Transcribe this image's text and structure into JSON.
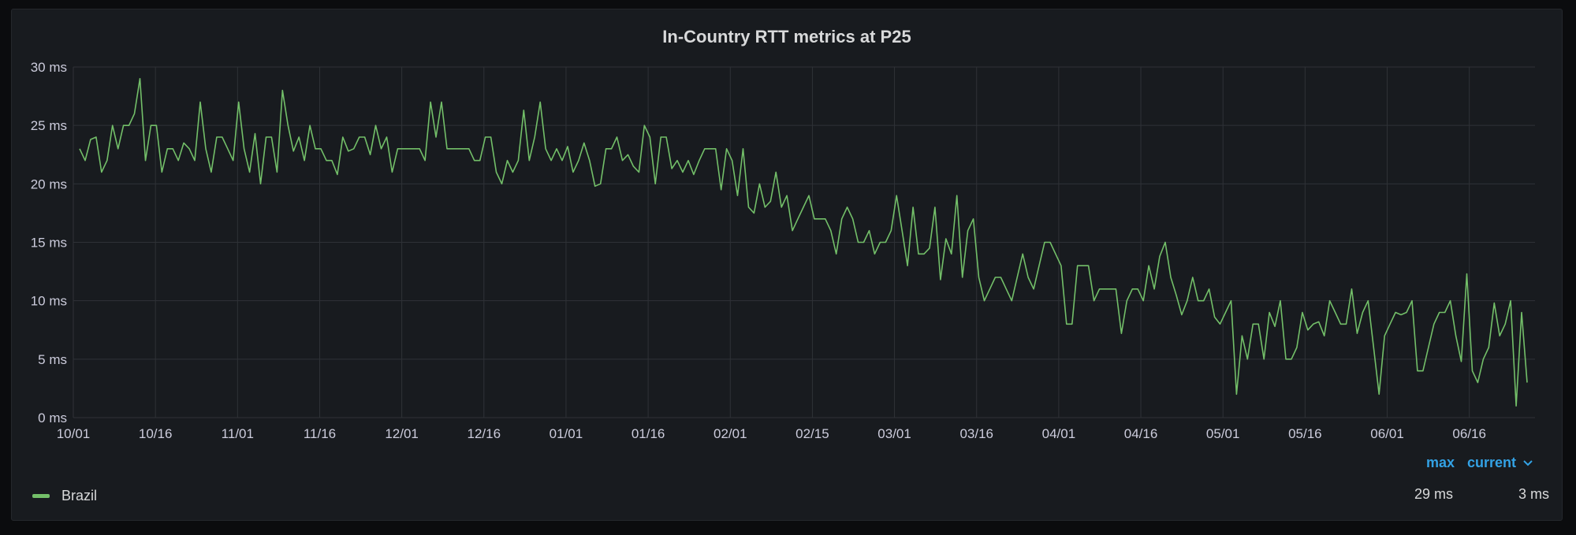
{
  "chart_data": {
    "type": "line",
    "title": "In-Country RTT metrics at P25",
    "x_tick_labels": [
      "10/01",
      "10/16",
      "11/01",
      "11/16",
      "12/01",
      "12/16",
      "01/01",
      "01/16",
      "02/01",
      "02/15",
      "03/01",
      "03/16",
      "04/01",
      "04/16",
      "05/01",
      "05/16",
      "06/01",
      "06/16"
    ],
    "y_tick_labels": [
      "0 ms",
      "5 ms",
      "10 ms",
      "15 ms",
      "20 ms",
      "25 ms",
      "30 ms"
    ],
    "ylim": [
      0,
      30
    ],
    "y_unit": "ms",
    "grid": true,
    "legend_position": "bottom",
    "series": [
      {
        "name": "Brazil",
        "color": "#73bf69",
        "values": [
          23,
          22,
          23.8,
          24,
          21,
          22,
          25,
          23,
          25,
          25,
          26,
          29,
          22,
          25,
          25,
          21,
          23,
          23,
          22,
          23.5,
          23,
          22,
          27,
          23,
          21,
          24,
          24,
          23,
          22,
          27,
          23,
          21,
          24.3,
          20,
          24,
          24,
          21,
          28,
          25,
          22.8,
          24,
          22,
          25,
          23,
          23,
          22,
          22,
          20.8,
          24,
          22.8,
          23,
          24,
          24,
          22.5,
          25,
          23,
          24,
          21,
          23,
          23,
          23,
          23,
          23,
          22,
          27,
          24,
          27,
          23,
          23,
          23,
          23,
          23,
          22,
          22,
          24,
          24,
          21,
          20,
          22,
          21,
          22,
          26.3,
          22,
          24,
          27,
          23,
          22,
          23,
          22,
          23.2,
          21,
          22,
          23.5,
          22,
          19.8,
          20,
          23,
          23,
          24,
          22,
          22.5,
          21.5,
          21,
          25,
          24,
          20,
          24,
          24,
          21.3,
          22,
          21,
          22,
          20.8,
          22,
          23,
          23,
          23,
          19.5,
          23,
          22,
          19,
          23,
          18,
          17.5,
          20,
          18,
          18.5,
          21,
          18,
          19,
          16,
          17,
          18,
          19,
          17,
          17,
          17,
          16,
          14,
          17,
          18,
          17,
          15,
          15,
          16,
          14,
          15,
          15,
          16,
          19,
          16,
          13,
          18,
          14,
          14,
          14.5,
          18,
          11.8,
          15.3,
          14,
          19,
          12,
          16,
          17,
          12,
          10,
          11,
          12,
          12,
          11,
          10,
          12,
          14,
          12,
          11,
          13,
          15,
          15,
          14,
          13,
          8,
          8,
          13,
          13,
          13,
          10,
          11,
          11,
          11,
          11,
          7.2,
          10,
          11,
          11,
          10,
          13,
          11,
          13.8,
          15,
          12,
          10.5,
          8.8,
          10,
          12,
          10,
          10,
          11,
          8.6,
          8,
          9,
          10,
          2,
          7,
          5,
          8,
          8,
          5,
          9,
          7.8,
          10,
          5,
          5,
          6,
          9,
          7.5,
          8,
          8.2,
          7,
          10,
          9,
          8,
          8,
          11,
          7.2,
          9,
          10,
          6,
          2,
          7,
          8,
          9,
          8.8,
          9,
          10,
          4,
          4,
          6,
          8,
          9,
          9,
          10,
          7,
          4.8,
          12.3,
          4,
          3,
          5,
          6,
          9.8,
          7,
          8,
          10,
          1,
          9,
          3
        ]
      }
    ],
    "legend_headers": [
      "max",
      "current"
    ],
    "legend_values": {
      "max": "29 ms",
      "current": "3 ms"
    }
  }
}
